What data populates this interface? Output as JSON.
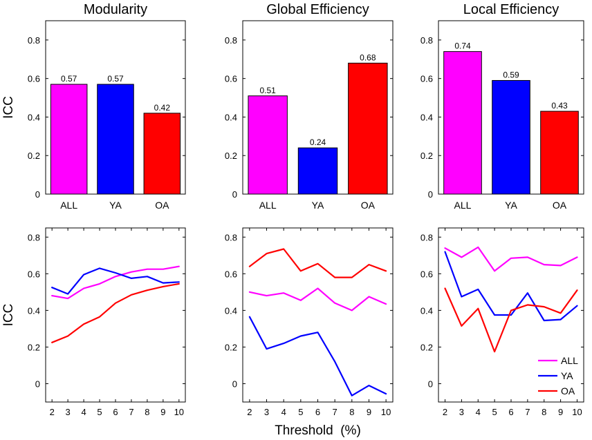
{
  "chart_data": [
    {
      "type": "bar",
      "title": "Modularity",
      "categories": [
        "ALL",
        "YA",
        "OA"
      ],
      "values": [
        0.57,
        0.57,
        0.42
      ],
      "data_labels": [
        "0.57",
        "0.57",
        "0.42"
      ],
      "ylabel": "ICC",
      "ylim": [
        0,
        0.9
      ],
      "yticks": [
        "0",
        "0.2",
        "0.4",
        "0.6",
        "0.8"
      ]
    },
    {
      "type": "bar",
      "title": "Global Efficiency",
      "categories": [
        "ALL",
        "YA",
        "OA"
      ],
      "values": [
        0.51,
        0.24,
        0.68
      ],
      "data_labels": [
        "0.51",
        "0.24",
        "0.68"
      ],
      "ylim": [
        0,
        0.9
      ],
      "yticks": [
        "0",
        "0.2",
        "0.4",
        "0.6",
        "0.8"
      ]
    },
    {
      "type": "bar",
      "title": "Local Efficiency",
      "categories": [
        "ALL",
        "YA",
        "OA"
      ],
      "values": [
        0.74,
        0.59,
        0.43
      ],
      "data_labels": [
        "0.74",
        "0.59",
        "0.43"
      ],
      "ylim": [
        0,
        0.9
      ],
      "yticks": [
        "0",
        "0.2",
        "0.4",
        "0.6",
        "0.8"
      ]
    },
    {
      "type": "line",
      "x": [
        2,
        3,
        4,
        5,
        6,
        7,
        8,
        9,
        10
      ],
      "ylabel": "ICC",
      "ylim": [
        -0.1,
        0.85
      ],
      "yticks": [
        "0",
        "0.2",
        "0.4",
        "0.6",
        "0.8"
      ],
      "xticks": [
        "2",
        "3",
        "4",
        "5",
        "6",
        "7",
        "8",
        "9",
        "10"
      ],
      "series": [
        {
          "name": "ALL",
          "values": [
            0.48,
            0.465,
            0.52,
            0.545,
            0.585,
            0.61,
            0.625,
            0.625,
            0.64
          ]
        },
        {
          "name": "YA",
          "values": [
            0.525,
            0.49,
            0.595,
            0.63,
            0.605,
            0.575,
            0.585,
            0.55,
            0.555
          ]
        },
        {
          "name": "OA",
          "values": [
            0.225,
            0.26,
            0.325,
            0.365,
            0.44,
            0.485,
            0.51,
            0.53,
            0.545
          ]
        }
      ]
    },
    {
      "type": "line",
      "x": [
        2,
        3,
        4,
        5,
        6,
        7,
        8,
        9,
        10
      ],
      "xlabel": "Threshold  (%)",
      "ylim": [
        -0.1,
        0.85
      ],
      "yticks": [
        "0",
        "0.2",
        "0.4",
        "0.6",
        "0.8"
      ],
      "xticks": [
        "2",
        "3",
        "4",
        "5",
        "6",
        "7",
        "8",
        "9",
        "10"
      ],
      "series": [
        {
          "name": "ALL",
          "values": [
            0.5,
            0.48,
            0.495,
            0.455,
            0.52,
            0.44,
            0.4,
            0.475,
            0.435
          ]
        },
        {
          "name": "YA",
          "values": [
            0.365,
            0.19,
            0.22,
            0.26,
            0.28,
            0.12,
            -0.065,
            -0.01,
            -0.055
          ]
        },
        {
          "name": "OA",
          "values": [
            0.64,
            0.71,
            0.735,
            0.615,
            0.655,
            0.58,
            0.58,
            0.65,
            0.615
          ]
        }
      ]
    },
    {
      "type": "line",
      "x": [
        2,
        3,
        4,
        5,
        6,
        7,
        8,
        9,
        10
      ],
      "ylim": [
        -0.1,
        0.85
      ],
      "yticks": [
        "0",
        "0.2",
        "0.4",
        "0.6",
        "0.8"
      ],
      "xticks": [
        "2",
        "3",
        "4",
        "5",
        "6",
        "7",
        "8",
        "9",
        "10"
      ],
      "legend_position": "bottom-right",
      "series": [
        {
          "name": "ALL",
          "values": [
            0.74,
            0.69,
            0.745,
            0.615,
            0.685,
            0.69,
            0.65,
            0.645,
            0.69
          ]
        },
        {
          "name": "YA",
          "values": [
            0.72,
            0.475,
            0.515,
            0.375,
            0.375,
            0.495,
            0.345,
            0.35,
            0.425
          ]
        },
        {
          "name": "OA",
          "values": [
            0.52,
            0.315,
            0.41,
            0.175,
            0.4,
            0.43,
            0.42,
            0.385,
            0.51
          ]
        }
      ]
    }
  ],
  "colors": {
    "ALL": "#ff00ff",
    "YA": "#0000ff",
    "OA": "#ff0000"
  }
}
